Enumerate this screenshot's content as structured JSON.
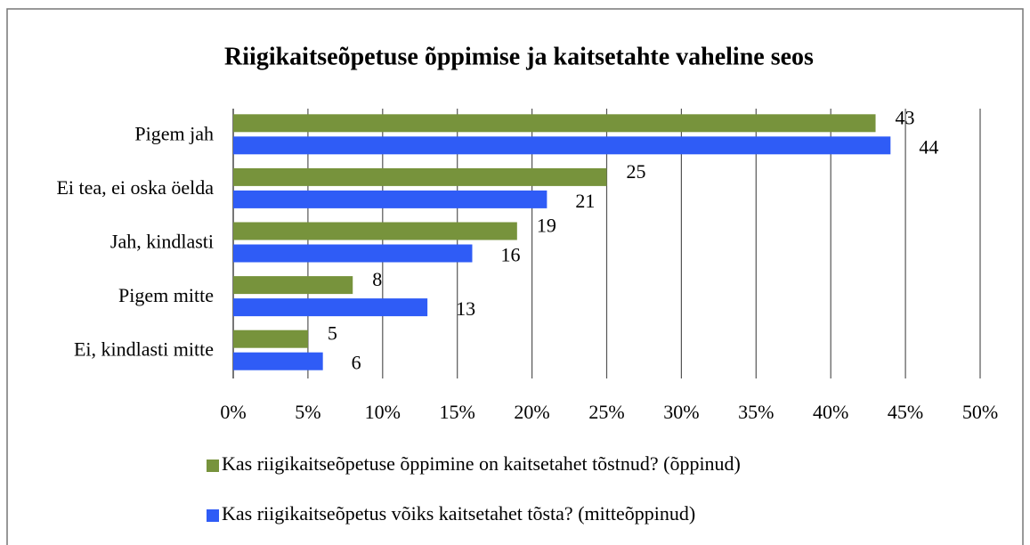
{
  "chart_data": {
    "type": "hbar",
    "title": "Riigikaitseõpetuse õppimise ja kaitsetahte vaheline seos",
    "categories": [
      "Pigem jah",
      "Ei tea, ei oska öelda",
      "Jah, kindlasti",
      "Pigem mitte",
      "Ei, kindlasti mitte"
    ],
    "series": [
      {
        "name": "Kas riigikaitseõpetuse õppimine on kaitsetahet tõstnud? (õppinud)",
        "color": "#77933c",
        "values": [
          43,
          25,
          19,
          8,
          5
        ]
      },
      {
        "name": "Kas riigikaitseõpetus võiks kaitsetahet tõsta? (mitteõppinud)",
        "color": "#2f5cf6",
        "values": [
          44,
          21,
          16,
          13,
          6
        ]
      }
    ],
    "xlim": [
      0,
      50
    ],
    "xticks": [
      {
        "value": 0,
        "label": "0%"
      },
      {
        "value": 5,
        "label": "5%"
      },
      {
        "value": 10,
        "label": "10%"
      },
      {
        "value": 15,
        "label": "15%"
      },
      {
        "value": 20,
        "label": "20%"
      },
      {
        "value": 25,
        "label": "25%"
      },
      {
        "value": 30,
        "label": "30%"
      },
      {
        "value": 35,
        "label": "35%"
      },
      {
        "value": 40,
        "label": "40%"
      },
      {
        "value": 45,
        "label": "45%"
      },
      {
        "value": 50,
        "label": "50%"
      }
    ],
    "grid": true,
    "legend": "bottom"
  }
}
